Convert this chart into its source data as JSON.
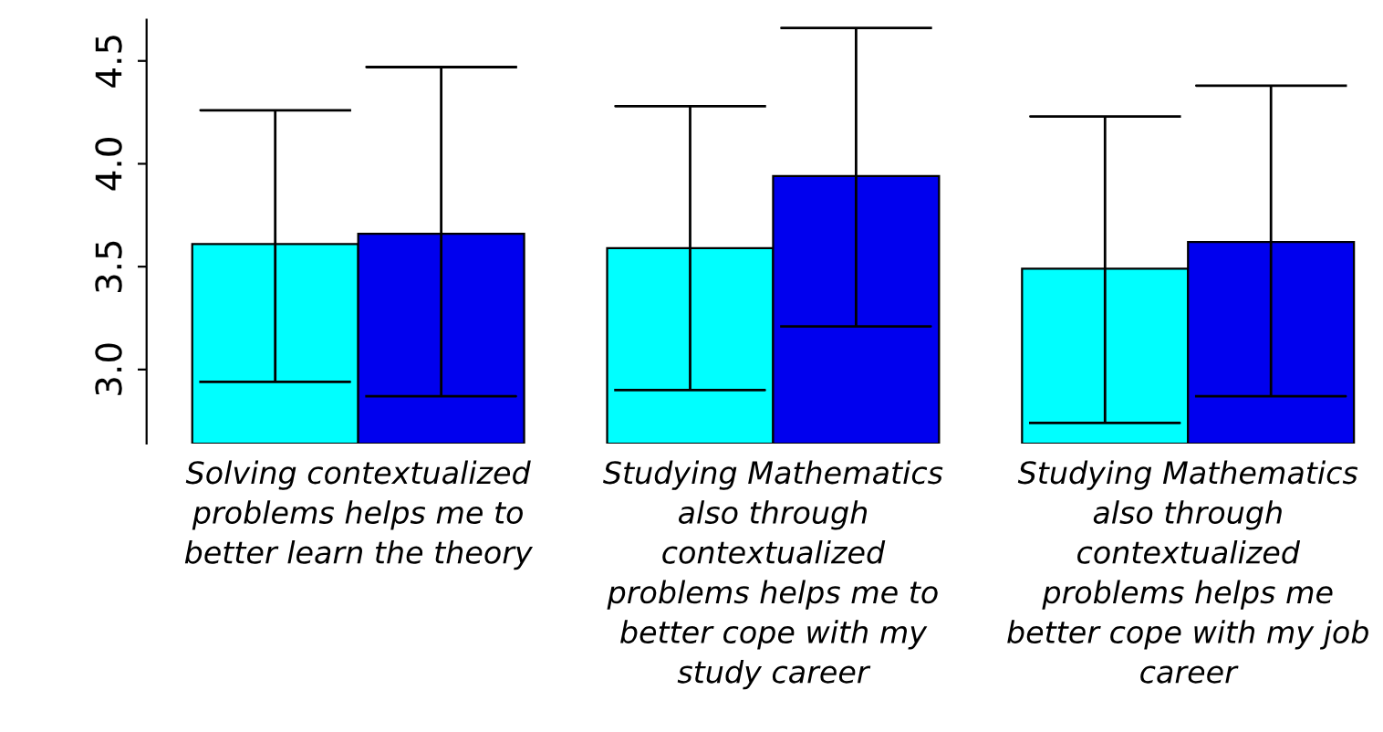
{
  "chart_data": {
    "type": "bar",
    "categories": [
      "Solving contextualized\nproblems helps me to\nbetter learn the theory",
      "Studying Mathematics\nalso through\ncontextualized\nproblems helps me to\nbetter cope with my\nstudy career",
      "Studying Mathematics\nalso through\ncontextualized\nproblems helps me\nbetter cope with my job\ncareer"
    ],
    "series": [
      {
        "color": "#00ffff",
        "values": [
          3.61,
          3.59,
          3.49
        ],
        "errors": [
          [
            2.94,
            4.26
          ],
          [
            2.9,
            4.28
          ],
          [
            2.74,
            4.23
          ]
        ]
      },
      {
        "color": "#0000ee",
        "values": [
          3.66,
          3.94,
          3.62
        ],
        "errors": [
          [
            2.87,
            4.47
          ],
          [
            3.21,
            4.66
          ],
          [
            2.87,
            4.38
          ]
        ]
      }
    ],
    "ylim": [
      2.64,
      4.7
    ],
    "yticks": [
      {
        "value": 3.0,
        "label": "3.0"
      },
      {
        "value": 3.5,
        "label": "3.5"
      },
      {
        "value": 4.0,
        "label": "4.0"
      },
      {
        "value": 4.5,
        "label": "4.5"
      }
    ],
    "grid": false,
    "legend": false
  }
}
